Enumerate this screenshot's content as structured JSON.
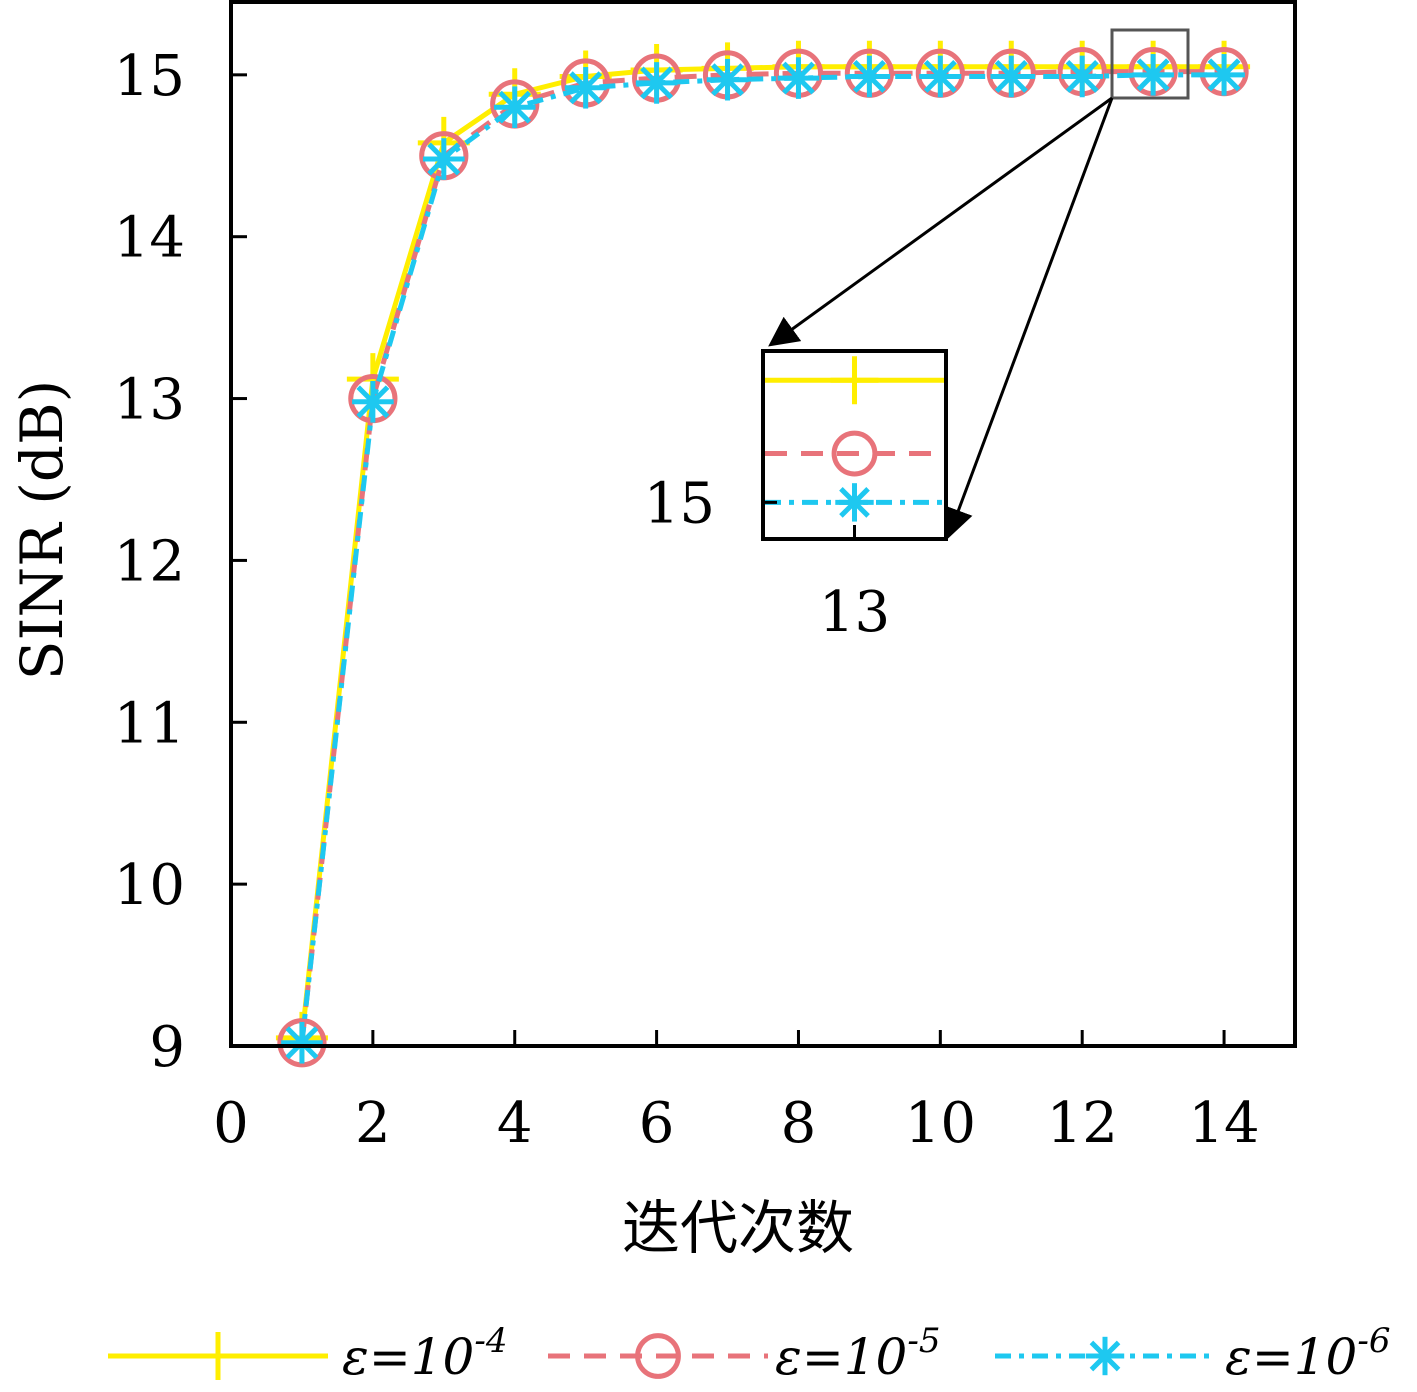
{
  "chart_data": {
    "type": "line",
    "xlabel": "迭代次数",
    "ylabel": "SINR (dB)",
    "xlim": [
      0,
      15
    ],
    "ylim": [
      9,
      15.45
    ],
    "xticks": [
      0,
      2,
      4,
      6,
      8,
      10,
      12,
      14
    ],
    "yticks": [
      9,
      10,
      11,
      12,
      13,
      14,
      15
    ],
    "x": [
      1,
      2,
      3,
      4,
      5,
      6,
      7,
      8,
      9,
      10,
      11,
      12,
      13,
      14
    ],
    "series": [
      {
        "name": "ε=10^-4",
        "legend_main": "ε=10",
        "legend_exp": "-4",
        "color": "#ffee00",
        "dash": "solid",
        "marker": "plus",
        "values": [
          9.05,
          13.12,
          14.58,
          14.88,
          14.99,
          15.03,
          15.04,
          15.05,
          15.05,
          15.05,
          15.05,
          15.05,
          15.05,
          15.05
        ]
      },
      {
        "name": "ε=10^-5",
        "legend_main": "ε=10",
        "legend_exp": "-5",
        "color": "#e8737a",
        "dash": "dashed",
        "marker": "circle",
        "values": [
          9.02,
          13.0,
          14.5,
          14.82,
          14.95,
          14.98,
          15.0,
          15.01,
          15.01,
          15.01,
          15.01,
          15.02,
          15.02,
          15.02
        ]
      },
      {
        "name": "ε=10^-6",
        "legend_main": "ε=10",
        "legend_exp": "-6",
        "color": "#1ec8f0",
        "dash": "dashdot",
        "marker": "asterisk",
        "values": [
          9.02,
          12.98,
          14.48,
          14.8,
          14.92,
          14.95,
          14.97,
          14.98,
          14.99,
          14.99,
          14.99,
          14.99,
          15.0,
          15.0
        ]
      }
    ],
    "inset": {
      "x_label": "13",
      "y_label": "15"
    },
    "legend_position": "bottom"
  }
}
